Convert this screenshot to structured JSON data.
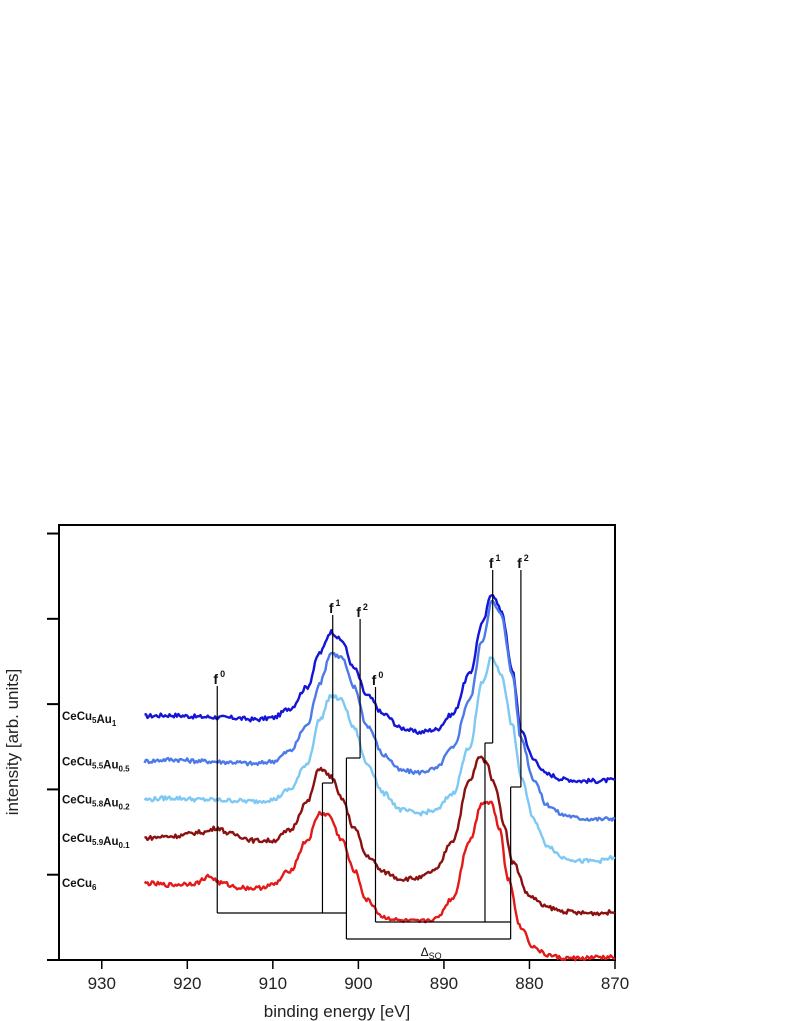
{
  "chart_data": {
    "type": "line",
    "xlabel": "binding energy [eV]",
    "ylabel": "intensity [arb. units]",
    "xlim": [
      935,
      870
    ],
    "x_reversed": true,
    "ylim": [
      0,
      5.1
    ],
    "x_ticks": [
      "930",
      "920",
      "910",
      "900",
      "890",
      "880",
      "870"
    ],
    "y_ticks_labeled": false,
    "grid": false,
    "legend": "inline labels at left",
    "series": [
      {
        "name": "CeCu5Au1",
        "label_parts": [
          {
            "t": "CeCu"
          },
          {
            "t": "5",
            "sub": true
          },
          {
            "t": "Au"
          },
          {
            "t": "1",
            "sub": true
          }
        ],
        "color": "#1515d8",
        "x": [
          925,
          922,
          918,
          915,
          912,
          910,
          908,
          906,
          904.5,
          903.2,
          902,
          900.5,
          899,
          897,
          895,
          893,
          891,
          889,
          887,
          885.5,
          884.4,
          883.3,
          882,
          881,
          879.5,
          878,
          876,
          874,
          872,
          870
        ],
        "y": [
          2.86,
          2.87,
          2.85,
          2.84,
          2.82,
          2.84,
          2.95,
          3.2,
          3.6,
          3.85,
          3.75,
          3.42,
          3.1,
          2.88,
          2.72,
          2.67,
          2.7,
          2.88,
          3.35,
          3.95,
          4.3,
          4.1,
          3.4,
          2.7,
          2.35,
          2.18,
          2.12,
          2.1,
          2.1,
          2.11
        ]
      },
      {
        "name": "CeCu5.5Au0.5",
        "label_parts": [
          {
            "t": "CeCu"
          },
          {
            "t": "5.5",
            "sub": true
          },
          {
            "t": "Au"
          },
          {
            "t": "0.5",
            "sub": true
          }
        ],
        "color": "#4c7ae8",
        "x": [
          925,
          922,
          918,
          915,
          912,
          910,
          908,
          906,
          904.5,
          903.2,
          902,
          900.5,
          899,
          897,
          895,
          893,
          891,
          889,
          887,
          885.5,
          884.4,
          883.3,
          882,
          881,
          879.5,
          878,
          876,
          874,
          872,
          870
        ],
        "y": [
          2.33,
          2.35,
          2.33,
          2.32,
          2.3,
          2.33,
          2.45,
          2.75,
          3.25,
          3.6,
          3.55,
          3.2,
          2.75,
          2.4,
          2.22,
          2.2,
          2.24,
          2.48,
          3.05,
          3.75,
          4.2,
          4.05,
          3.35,
          2.6,
          2.12,
          1.82,
          1.7,
          1.66,
          1.65,
          1.66
        ]
      },
      {
        "name": "CeCu5.8Au0.2",
        "label_parts": [
          {
            "t": "CeCu"
          },
          {
            "t": "5.8",
            "sub": true
          },
          {
            "t": "Au"
          },
          {
            "t": "0.2",
            "sub": true
          }
        ],
        "color": "#7ec8f4",
        "x": [
          925,
          922,
          918,
          915,
          912,
          910,
          908,
          906,
          904.5,
          903.2,
          902,
          900.5,
          899,
          897,
          895,
          893,
          891,
          889,
          887,
          885.5,
          884.4,
          883.3,
          882,
          881,
          879.5,
          878,
          876,
          874,
          872,
          870
        ],
        "y": [
          1.88,
          1.9,
          1.88,
          1.87,
          1.86,
          1.88,
          2.0,
          2.3,
          2.82,
          3.1,
          3.05,
          2.72,
          2.3,
          1.95,
          1.76,
          1.72,
          1.75,
          1.95,
          2.5,
          3.25,
          3.55,
          3.35,
          2.75,
          2.15,
          1.65,
          1.35,
          1.2,
          1.16,
          1.16,
          1.2
        ]
      },
      {
        "name": "CeCu5.9Au0.1",
        "label_parts": [
          {
            "t": "CeCu"
          },
          {
            "t": "5.9",
            "sub": true
          },
          {
            "t": "Au"
          },
          {
            "t": "0.1",
            "sub": true
          }
        ],
        "color": "#8b1010",
        "x": [
          925,
          922,
          918,
          916.5,
          915,
          912,
          910,
          908,
          906,
          904.5,
          903.2,
          902,
          900.5,
          899,
          897,
          895,
          893,
          891,
          889,
          887,
          885.8,
          885.2,
          884,
          883,
          882,
          880,
          878,
          876,
          874,
          872,
          870
        ],
        "y": [
          1.43,
          1.45,
          1.5,
          1.55,
          1.48,
          1.4,
          1.4,
          1.52,
          1.85,
          2.25,
          2.15,
          1.9,
          1.55,
          1.22,
          1.03,
          0.95,
          0.96,
          1.05,
          1.4,
          2.1,
          2.38,
          2.34,
          2.05,
          1.6,
          1.15,
          0.75,
          0.62,
          0.57,
          0.55,
          0.55,
          0.56
        ]
      },
      {
        "name": "CeCu6",
        "label_parts": [
          {
            "t": "CeCu"
          },
          {
            "t": "6",
            "sub": true
          }
        ],
        "color": "#e31a1a",
        "x": [
          925,
          922,
          919,
          917.5,
          916,
          914,
          912,
          910,
          908,
          906,
          904.5,
          903.5,
          902,
          900.5,
          899,
          897,
          895,
          893,
          891,
          889,
          887,
          885.5,
          884.5,
          883.5,
          882.5,
          881,
          879.5,
          878,
          876,
          874,
          872,
          870
        ],
        "y": [
          0.9,
          0.88,
          0.9,
          0.98,
          0.9,
          0.85,
          0.84,
          0.88,
          1.05,
          1.4,
          1.72,
          1.7,
          1.42,
          1.05,
          0.7,
          0.5,
          0.46,
          0.45,
          0.48,
          0.72,
          1.4,
          1.85,
          1.85,
          1.55,
          0.95,
          0.38,
          0.15,
          0.06,
          0.02,
          0.02,
          0.03,
          0.03
        ]
      }
    ],
    "annotations": {
      "peak_labels": [
        {
          "base": "f",
          "sup": "0",
          "x": 916.5
        },
        {
          "base": "f",
          "sup": "1",
          "x": 903
        },
        {
          "base": "f",
          "sup": "2",
          "x": 899.8
        },
        {
          "base": "f",
          "sup": "0",
          "x": 898
        },
        {
          "base": "f",
          "sup": "1",
          "x": 884.3
        },
        {
          "base": "f",
          "sup": "2",
          "x": 881
        }
      ],
      "so_label": {
        "base": "Δ",
        "sub": "SO"
      }
    }
  }
}
